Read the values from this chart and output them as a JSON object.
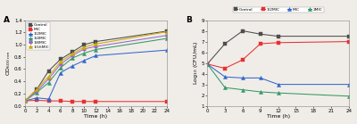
{
  "panel_A": {
    "title": "A",
    "xlabel": "Time (h)",
    "ylabel": "OD$_{600 nm}$",
    "xlim": [
      0,
      24
    ],
    "ylim": [
      0.0,
      1.4
    ],
    "xticks": [
      0,
      2,
      4,
      6,
      8,
      10,
      12,
      14,
      16,
      18,
      20,
      22,
      24
    ],
    "yticks": [
      0.0,
      0.2,
      0.4,
      0.6,
      0.8,
      1.0,
      1.2,
      1.4
    ],
    "series": [
      {
        "label": "Control",
        "color": "#4d4d4d",
        "marker": "s",
        "markersize": 2.8,
        "x": [
          0,
          2,
          4,
          6,
          8,
          10,
          12,
          24
        ],
        "y": [
          0.08,
          0.27,
          0.57,
          0.76,
          0.88,
          1.0,
          1.05,
          1.22
        ]
      },
      {
        "label": "MIC",
        "color": "#e83030",
        "marker": "s",
        "markersize": 2.8,
        "x": [
          0,
          2,
          4,
          6,
          8,
          10,
          12,
          24
        ],
        "y": [
          0.08,
          0.09,
          0.08,
          0.08,
          0.07,
          0.07,
          0.07,
          0.07
        ]
      },
      {
        "label": "1/2MIC",
        "color": "#3366cc",
        "marker": "^",
        "markersize": 3.0,
        "x": [
          0,
          2,
          4,
          6,
          8,
          10,
          12,
          24
        ],
        "y": [
          0.08,
          0.13,
          0.11,
          0.54,
          0.65,
          0.74,
          0.82,
          0.91
        ]
      },
      {
        "label": "1/4MIC",
        "color": "#339966",
        "marker": "^",
        "markersize": 3.0,
        "x": [
          0,
          2,
          4,
          6,
          8,
          10,
          12,
          24
        ],
        "y": [
          0.08,
          0.22,
          0.38,
          0.62,
          0.78,
          0.86,
          0.92,
          1.1
        ]
      },
      {
        "label": "1/8MIC",
        "color": "#9966cc",
        "marker": "o",
        "markersize": 2.8,
        "x": [
          0,
          2,
          4,
          6,
          8,
          10,
          12,
          24
        ],
        "y": [
          0.08,
          0.24,
          0.44,
          0.68,
          0.82,
          0.93,
          0.97,
          1.15
        ]
      },
      {
        "label": "1/16MIC",
        "color": "#ccaa00",
        "marker": "^",
        "markersize": 3.0,
        "x": [
          0,
          2,
          4,
          6,
          8,
          10,
          12,
          24
        ],
        "y": [
          0.08,
          0.27,
          0.48,
          0.72,
          0.85,
          0.96,
          1.01,
          1.21
        ]
      }
    ]
  },
  "panel_B": {
    "title": "B",
    "xlabel": "Time (h)",
    "ylabel": "Log$_{10}$ (CFU/mL)",
    "xlim": [
      0,
      24
    ],
    "ylim": [
      1,
      9
    ],
    "xticks": [
      0,
      3,
      6,
      9,
      12,
      15,
      18,
      21,
      24
    ],
    "yticks": [
      1,
      2,
      3,
      4,
      5,
      6,
      7,
      8,
      9
    ],
    "series": [
      {
        "label": "Control",
        "color": "#4d4d4d",
        "marker": "s",
        "markersize": 2.8,
        "x": [
          0,
          3,
          6,
          9,
          12,
          24
        ],
        "y": [
          4.9,
          6.8,
          8.0,
          7.7,
          7.5,
          7.5
        ]
      },
      {
        "label": "1/2MIC",
        "color": "#e83030",
        "marker": "s",
        "markersize": 2.8,
        "x": [
          0,
          3,
          6,
          9,
          12,
          24
        ],
        "y": [
          4.9,
          4.5,
          5.3,
          6.8,
          6.9,
          7.0
        ]
      },
      {
        "label": "MIC",
        "color": "#3366cc",
        "marker": "^",
        "markersize": 3.0,
        "x": [
          0,
          3,
          6,
          9,
          12,
          24
        ],
        "y": [
          4.9,
          3.7,
          3.6,
          3.6,
          3.0,
          3.0
        ]
      },
      {
        "label": "2MIC",
        "color": "#339966",
        "marker": "^",
        "markersize": 3.0,
        "x": [
          0,
          3,
          6,
          9,
          12,
          24
        ],
        "y": [
          4.9,
          2.7,
          2.5,
          2.3,
          2.2,
          1.9
        ]
      }
    ]
  },
  "bg_color": "#f0ede8",
  "fig_width": 4.0,
  "fig_height": 1.39
}
